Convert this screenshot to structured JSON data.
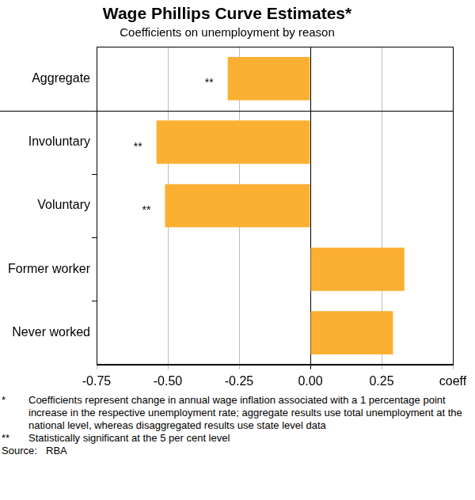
{
  "chart_data": {
    "type": "bar",
    "orientation": "horizontal",
    "title": "Wage Phillips Curve Estimates*",
    "subtitle": "Coefficients on unemployment by reason",
    "categories": [
      "Aggregate",
      "Involuntary",
      "Voluntary",
      "Former worker",
      "Never worked"
    ],
    "values": [
      -0.29,
      -0.54,
      -0.51,
      0.33,
      0.29
    ],
    "color": "#fbb034",
    "xlim": [
      -0.75,
      0.5
    ],
    "xticks": [
      {
        "value": -0.75,
        "label": "-0.75"
      },
      {
        "value": -0.5,
        "label": "-0.50"
      },
      {
        "value": -0.25,
        "label": "-0.25"
      },
      {
        "value": 0,
        "label": "0.00"
      },
      {
        "value": 0.25,
        "label": "0.25"
      },
      {
        "value": 0.5,
        "label": "coeff"
      }
    ],
    "grid": true,
    "annotations": [
      {
        "category": "Aggregate",
        "text": "**"
      },
      {
        "category": "Involuntary",
        "text": "**"
      },
      {
        "category": "Voluntary",
        "text": "**"
      }
    ],
    "notes": [
      {
        "marker": "*",
        "text": "Coefficients represent change in annual wage inflation associated with a 1 percentage point increase in the respective unemployment rate; aggregate results use total unemployment at the national level, whereas disaggregated results use state level data"
      },
      {
        "marker": "**",
        "text": "Statistically significant at the 5 per cent level"
      }
    ],
    "source": {
      "label": "Source:",
      "text": "RBA"
    }
  }
}
